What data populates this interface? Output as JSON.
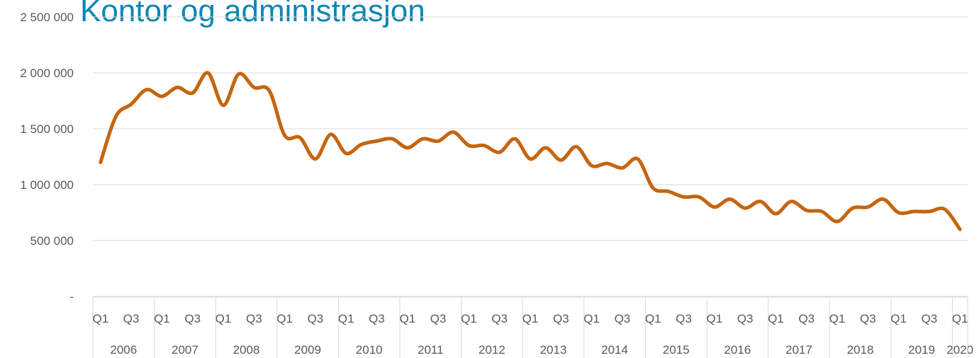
{
  "chart_data": {
    "type": "line",
    "title": "Kontor og administrasjon",
    "categories": [
      "Q1",
      null,
      "Q3",
      null,
      "Q1",
      null,
      "Q3",
      null,
      "Q1",
      null,
      "Q3",
      null,
      "Q1",
      null,
      "Q3",
      null,
      "Q1",
      null,
      "Q3",
      null,
      "Q1",
      null,
      "Q3",
      null,
      "Q1",
      null,
      "Q3",
      null,
      "Q1",
      null,
      "Q3",
      null,
      "Q1",
      null,
      "Q3",
      null,
      "Q1",
      null,
      "Q3",
      null,
      "Q1",
      null,
      "Q3",
      null,
      "Q1",
      null,
      "Q3",
      null,
      "Q1",
      null,
      "Q3",
      null,
      "Q1",
      null,
      "Q3",
      null,
      "Q1"
    ],
    "year_groups": [
      "2006",
      "2007",
      "2008",
      "2009",
      "2010",
      "2011",
      "2012",
      "2013",
      "2014",
      "2015",
      "2016",
      "2017",
      "2018",
      "2019",
      "2020"
    ],
    "series": [
      {
        "color": "#c5650f",
        "values": [
          1200000,
          1610000,
          1720000,
          1850000,
          1790000,
          1870000,
          1820000,
          2000000,
          1710000,
          1990000,
          1870000,
          1840000,
          1440000,
          1420000,
          1230000,
          1450000,
          1280000,
          1360000,
          1390000,
          1410000,
          1330000,
          1410000,
          1390000,
          1470000,
          1350000,
          1350000,
          1290000,
          1410000,
          1230000,
          1330000,
          1220000,
          1340000,
          1170000,
          1190000,
          1150000,
          1230000,
          970000,
          940000,
          890000,
          890000,
          800000,
          870000,
          790000,
          850000,
          740000,
          850000,
          770000,
          760000,
          670000,
          790000,
          800000,
          870000,
          750000,
          760000,
          760000,
          780000,
          600000
        ]
      }
    ],
    "ylim": [
      0,
      2500000
    ],
    "yticks": [
      {
        "value": 0,
        "label": "-"
      },
      {
        "value": 500000,
        "label": "500 000"
      },
      {
        "value": 1000000,
        "label": "1 000 000"
      },
      {
        "value": 1500000,
        "label": "1 500 000"
      },
      {
        "value": 2000000,
        "label": "2 000 000"
      },
      {
        "value": 2500000,
        "label": "2 500 000"
      }
    ],
    "grid": true
  }
}
